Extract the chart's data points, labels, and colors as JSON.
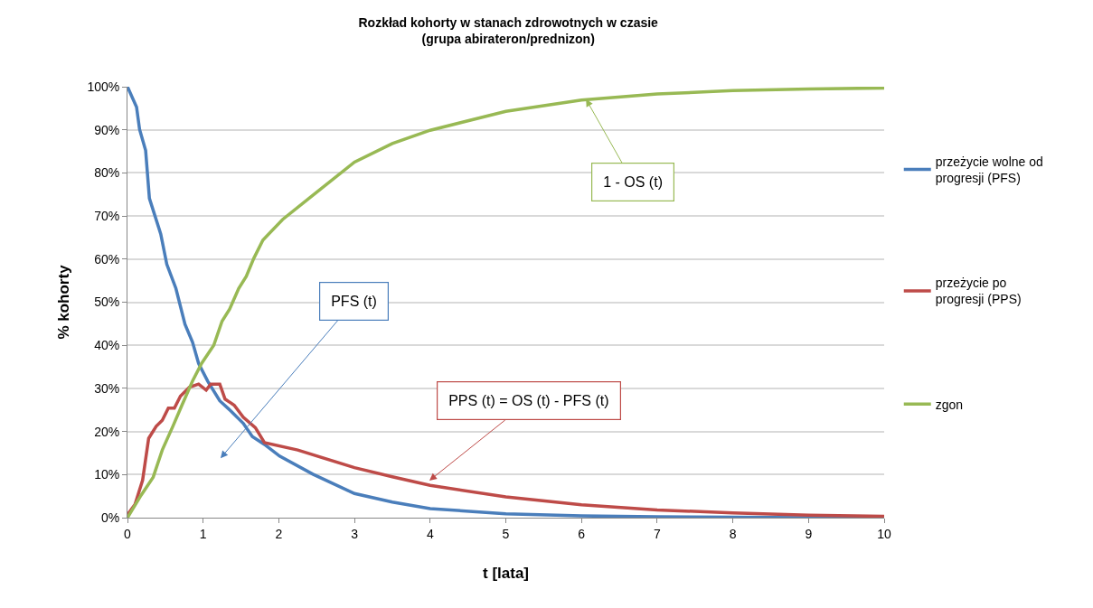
{
  "chart_data": {
    "type": "line",
    "title": "Rozkład kohorty w stanach zdrowotnych w czasie\n(grupa abirateron/prednizon)",
    "xlabel": "t [lata]",
    "ylabel": "% kohorty",
    "xlim": [
      0,
      10
    ],
    "xticks": [
      0,
      1,
      2,
      3,
      4,
      5,
      6,
      7,
      8,
      9,
      10
    ],
    "ylim": [
      0,
      100
    ],
    "yticks": [
      {
        "value": 0,
        "label": "0%"
      },
      {
        "value": 10,
        "label": "10%"
      },
      {
        "value": 20,
        "label": "20%"
      },
      {
        "value": 30,
        "label": "30%"
      },
      {
        "value": 40,
        "label": "40%"
      },
      {
        "value": 50,
        "label": "50%"
      },
      {
        "value": 60,
        "label": "60%"
      },
      {
        "value": 70,
        "label": "70%"
      },
      {
        "value": 80,
        "label": "80%"
      },
      {
        "value": 90,
        "label": "90%"
      },
      {
        "value": 100,
        "label": "100%"
      }
    ],
    "grid": "y",
    "legend": "right",
    "marker": "none",
    "line_style": "solid",
    "series": [
      {
        "name": "przeżycie wolne od progresji (PFS)",
        "color": "#4a7ebb",
        "x": [
          0,
          0.12,
          0.16,
          0.24,
          0.29,
          0.44,
          0.52,
          0.64,
          0.76,
          0.86,
          0.94,
          1.06,
          1.22,
          1.37,
          1.53,
          1.65,
          1.81,
          2.01,
          2.45,
          3,
          3.5,
          4,
          5,
          6,
          7,
          8,
          9,
          10
        ],
        "values": [
          100,
          95.3,
          90.1,
          85.2,
          74.1,
          65.8,
          58.8,
          53.2,
          44.9,
          40.7,
          35.8,
          31.7,
          27.1,
          24.7,
          21.9,
          18.8,
          17,
          14.3,
          10.1,
          5.6,
          3.6,
          2.1,
          0.9,
          0.4,
          0.2,
          0.1,
          0,
          0
        ]
      },
      {
        "name": "przeżycie po progresji (PPS)",
        "color": "#be4b48",
        "x": [
          0,
          0.1,
          0.2,
          0.28,
          0.38,
          0.46,
          0.54,
          0.62,
          0.7,
          0.82,
          0.94,
          1.04,
          1.1,
          1.22,
          1.29,
          1.41,
          1.53,
          1.69,
          1.81,
          2.25,
          3,
          3.5,
          4,
          5,
          6,
          7,
          8,
          9,
          10
        ],
        "values": [
          0.7,
          3.1,
          8.7,
          18.4,
          21.2,
          22.6,
          25.4,
          25.4,
          28.2,
          30.3,
          31,
          29.6,
          31,
          31,
          27.5,
          26.1,
          23.3,
          20.9,
          17.4,
          15.7,
          11.6,
          9.5,
          7.5,
          4.8,
          3,
          1.8,
          1.1,
          0.6,
          0.3
        ]
      },
      {
        "name": "zgon",
        "color": "#98b954",
        "x": [
          0,
          0.18,
          0.34,
          0.46,
          0.6,
          0.72,
          0.86,
          0.98,
          1.14,
          1.25,
          1.35,
          1.47,
          1.57,
          1.67,
          1.79,
          2.05,
          2.45,
          3,
          3.5,
          4,
          5,
          6,
          7,
          8,
          9,
          10
        ],
        "values": [
          0,
          5.2,
          9.4,
          15.7,
          21.2,
          26.1,
          31.7,
          35.8,
          40,
          45.6,
          48.4,
          53.2,
          56,
          60.2,
          64.4,
          69.2,
          74.8,
          82.5,
          86.8,
          89.9,
          94.3,
          96.9,
          98.3,
          99.1,
          99.5,
          99.7
        ]
      }
    ],
    "annotations": [
      "PFS (t)",
      {
        "text": "PPS (t) = OS (t) - PFS (t)",
        "x": 3.99,
        "y": 8.6
      },
      {
        "text": "1 - OS (t)",
        "x": 6.06,
        "y": 97.1
      }
    ]
  }
}
